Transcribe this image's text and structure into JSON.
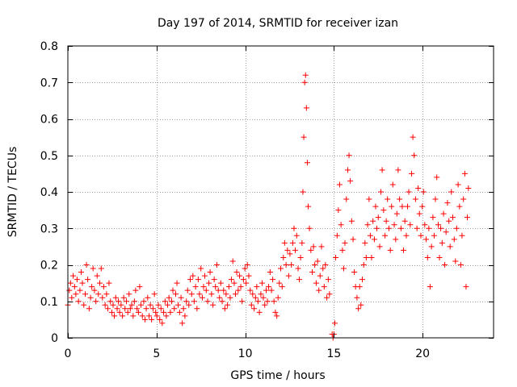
{
  "chart_data": {
    "type": "scatter",
    "title": "Day 197 of 2014, SRMTID for receiver izan",
    "xlabel": "GPS time / hours",
    "ylabel": "SRMTID / TECUs",
    "xlim": [
      0,
      24
    ],
    "ylim": [
      0,
      0.8
    ],
    "xticks": [
      0,
      5,
      10,
      15,
      20
    ],
    "xtick_labels": [
      "0",
      "5",
      "10",
      "15",
      "20"
    ],
    "yticks": [
      0,
      0.1,
      0.2,
      0.3,
      0.4,
      0.5,
      0.6,
      0.7,
      0.8
    ],
    "ytick_labels": [
      "0",
      "0.1",
      "0.2",
      "0.3",
      "0.4",
      "0.5",
      "0.6",
      "0.7",
      "0.8"
    ],
    "grid": true,
    "marker": "+",
    "colors": {
      "series": "#ff0000",
      "grid": "#a0a0a0",
      "axis": "#000000"
    },
    "series": [
      {
        "name": "SRMTID",
        "points": [
          [
            0.0,
            0.09
          ],
          [
            0.08,
            0.13
          ],
          [
            0.15,
            0.15
          ],
          [
            0.22,
            0.11
          ],
          [
            0.3,
            0.17
          ],
          [
            0.38,
            0.14
          ],
          [
            0.45,
            0.12
          ],
          [
            0.52,
            0.16
          ],
          [
            0.6,
            0.1
          ],
          [
            0.68,
            0.13
          ],
          [
            0.75,
            0.18
          ],
          [
            0.82,
            0.15
          ],
          [
            0.9,
            0.09
          ],
          [
            0.98,
            0.12
          ],
          [
            1.05,
            0.2
          ],
          [
            1.12,
            0.16
          ],
          [
            1.2,
            0.08
          ],
          [
            1.28,
            0.11
          ],
          [
            1.35,
            0.14
          ],
          [
            1.42,
            0.19
          ],
          [
            1.5,
            0.13
          ],
          [
            1.58,
            0.1
          ],
          [
            1.65,
            0.17
          ],
          [
            1.72,
            0.12
          ],
          [
            1.8,
            0.15
          ],
          [
            1.88,
            0.19
          ],
          [
            1.95,
            0.11
          ],
          [
            2.02,
            0.14
          ],
          [
            2.1,
            0.09
          ],
          [
            2.18,
            0.12
          ],
          [
            2.25,
            0.08
          ],
          [
            2.32,
            0.15
          ],
          [
            2.4,
            0.1
          ],
          [
            2.48,
            0.07
          ],
          [
            2.55,
            0.09
          ],
          [
            2.62,
            0.06
          ],
          [
            2.7,
            0.11
          ],
          [
            2.78,
            0.08
          ],
          [
            2.85,
            0.1
          ],
          [
            2.92,
            0.07
          ],
          [
            3.0,
            0.09
          ],
          [
            3.08,
            0.06
          ],
          [
            3.15,
            0.11
          ],
          [
            3.22,
            0.08
          ],
          [
            3.3,
            0.1
          ],
          [
            3.38,
            0.07
          ],
          [
            3.45,
            0.12
          ],
          [
            3.52,
            0.08
          ],
          [
            3.6,
            0.09
          ],
          [
            3.68,
            0.06
          ],
          [
            3.75,
            0.1
          ],
          [
            3.82,
            0.13
          ],
          [
            3.9,
            0.08
          ],
          [
            3.98,
            0.07
          ],
          [
            4.05,
            0.14
          ],
          [
            4.12,
            0.09
          ],
          [
            4.2,
            0.06
          ],
          [
            4.28,
            0.1
          ],
          [
            4.35,
            0.05
          ],
          [
            4.42,
            0.08
          ],
          [
            4.5,
            0.11
          ],
          [
            4.58,
            0.06
          ],
          [
            4.65,
            0.09
          ],
          [
            4.72,
            0.05
          ],
          [
            4.8,
            0.08
          ],
          [
            4.88,
            0.12
          ],
          [
            4.95,
            0.07
          ],
          [
            5.02,
            0.06
          ],
          [
            5.1,
            0.09
          ],
          [
            5.18,
            0.05
          ],
          [
            5.25,
            0.08
          ],
          [
            5.32,
            0.04
          ],
          [
            5.4,
            0.07
          ],
          [
            5.48,
            0.1
          ],
          [
            5.55,
            0.06
          ],
          [
            5.62,
            0.09
          ],
          [
            5.7,
            0.11
          ],
          [
            5.78,
            0.07
          ],
          [
            5.85,
            0.1
          ],
          [
            5.92,
            0.13
          ],
          [
            6.0,
            0.08
          ],
          [
            6.08,
            0.12
          ],
          [
            6.15,
            0.15
          ],
          [
            6.22,
            0.09
          ],
          [
            6.3,
            0.07
          ],
          [
            6.38,
            0.11
          ],
          [
            6.45,
            0.04
          ],
          [
            6.52,
            0.08
          ],
          [
            6.6,
            0.06
          ],
          [
            6.68,
            0.1
          ],
          [
            6.75,
            0.13
          ],
          [
            6.82,
            0.09
          ],
          [
            6.9,
            0.16
          ],
          [
            6.98,
            0.12
          ],
          [
            7.05,
            0.17
          ],
          [
            7.12,
            0.1
          ],
          [
            7.2,
            0.14
          ],
          [
            7.28,
            0.08
          ],
          [
            7.35,
            0.16
          ],
          [
            7.42,
            0.12
          ],
          [
            7.5,
            0.19
          ],
          [
            7.58,
            0.11
          ],
          [
            7.65,
            0.14
          ],
          [
            7.72,
            0.17
          ],
          [
            7.8,
            0.13
          ],
          [
            7.88,
            0.1
          ],
          [
            7.95,
            0.15
          ],
          [
            8.02,
            0.18
          ],
          [
            8.1,
            0.12
          ],
          [
            8.18,
            0.09
          ],
          [
            8.25,
            0.16
          ],
          [
            8.32,
            0.14
          ],
          [
            8.4,
            0.2
          ],
          [
            8.48,
            0.13
          ],
          [
            8.55,
            0.11
          ],
          [
            8.62,
            0.15
          ],
          [
            8.7,
            0.1
          ],
          [
            8.78,
            0.13
          ],
          [
            8.85,
            0.08
          ],
          [
            8.92,
            0.12
          ],
          [
            9.0,
            0.09
          ],
          [
            9.08,
            0.14
          ],
          [
            9.15,
            0.11
          ],
          [
            9.22,
            0.16
          ],
          [
            9.3,
            0.21
          ],
          [
            9.38,
            0.15
          ],
          [
            9.45,
            0.12
          ],
          [
            9.52,
            0.18
          ],
          [
            9.6,
            0.13
          ],
          [
            9.68,
            0.17
          ],
          [
            9.75,
            0.14
          ],
          [
            9.82,
            0.1
          ],
          [
            9.9,
            0.16
          ],
          [
            9.98,
            0.19
          ],
          [
            10.05,
            0.15
          ],
          [
            10.12,
            0.2
          ],
          [
            10.2,
            0.17
          ],
          [
            10.28,
            0.13
          ],
          [
            10.35,
            0.09
          ],
          [
            10.42,
            0.12
          ],
          [
            10.5,
            0.08
          ],
          [
            10.58,
            0.11
          ],
          [
            10.65,
            0.14
          ],
          [
            10.72,
            0.1
          ],
          [
            10.8,
            0.07
          ],
          [
            10.88,
            0.12
          ],
          [
            10.95,
            0.15
          ],
          [
            11.02,
            0.11
          ],
          [
            11.1,
            0.09
          ],
          [
            11.18,
            0.13
          ],
          [
            11.25,
            0.1
          ],
          [
            11.32,
            0.14
          ],
          [
            11.4,
            0.18
          ],
          [
            11.48,
            0.13
          ],
          [
            11.55,
            0.16
          ],
          [
            11.62,
            0.1
          ],
          [
            11.7,
            0.07
          ],
          [
            11.78,
            0.06
          ],
          [
            11.85,
            0.11
          ],
          [
            11.92,
            0.15
          ],
          [
            12.0,
            0.19
          ],
          [
            12.08,
            0.14
          ],
          [
            12.15,
            0.22
          ],
          [
            12.22,
            0.26
          ],
          [
            12.3,
            0.2
          ],
          [
            12.38,
            0.24
          ],
          [
            12.45,
            0.17
          ],
          [
            12.52,
            0.23
          ],
          [
            12.6,
            0.2
          ],
          [
            12.68,
            0.26
          ],
          [
            12.75,
            0.3
          ],
          [
            12.82,
            0.24
          ],
          [
            12.9,
            0.28
          ],
          [
            12.98,
            0.19
          ],
          [
            13.05,
            0.16
          ],
          [
            13.12,
            0.22
          ],
          [
            13.2,
            0.26
          ],
          [
            13.25,
            0.4
          ],
          [
            13.3,
            0.55
          ],
          [
            13.35,
            0.7
          ],
          [
            13.4,
            0.72
          ],
          [
            13.45,
            0.63
          ],
          [
            13.5,
            0.48
          ],
          [
            13.55,
            0.36
          ],
          [
            13.62,
            0.3
          ],
          [
            13.7,
            0.24
          ],
          [
            13.78,
            0.18
          ],
          [
            13.85,
            0.25
          ],
          [
            13.92,
            0.2
          ],
          [
            14.0,
            0.15
          ],
          [
            14.08,
            0.21
          ],
          [
            14.15,
            0.13
          ],
          [
            14.22,
            0.17
          ],
          [
            14.3,
            0.25
          ],
          [
            14.38,
            0.19
          ],
          [
            14.45,
            0.14
          ],
          [
            14.52,
            0.2
          ],
          [
            14.6,
            0.11
          ],
          [
            14.68,
            0.16
          ],
          [
            14.75,
            0.12
          ],
          [
            14.9,
            0.01
          ],
          [
            14.95,
            0.0
          ],
          [
            15.0,
            0.01
          ],
          [
            15.05,
            0.04
          ],
          [
            15.1,
            0.22
          ],
          [
            15.18,
            0.28
          ],
          [
            15.25,
            0.35
          ],
          [
            15.32,
            0.42
          ],
          [
            15.4,
            0.31
          ],
          [
            15.48,
            0.24
          ],
          [
            15.55,
            0.19
          ],
          [
            15.62,
            0.26
          ],
          [
            15.7,
            0.38
          ],
          [
            15.78,
            0.46
          ],
          [
            15.85,
            0.5
          ],
          [
            15.92,
            0.43
          ],
          [
            16.0,
            0.32
          ],
          [
            16.08,
            0.27
          ],
          [
            16.15,
            0.18
          ],
          [
            16.22,
            0.14
          ],
          [
            16.3,
            0.11
          ],
          [
            16.38,
            0.08
          ],
          [
            16.45,
            0.14
          ],
          [
            16.52,
            0.09
          ],
          [
            16.6,
            0.16
          ],
          [
            16.68,
            0.2
          ],
          [
            16.75,
            0.26
          ],
          [
            16.82,
            0.22
          ],
          [
            16.9,
            0.31
          ],
          [
            16.98,
            0.38
          ],
          [
            17.05,
            0.28
          ],
          [
            17.12,
            0.22
          ],
          [
            17.2,
            0.32
          ],
          [
            17.28,
            0.27
          ],
          [
            17.35,
            0.36
          ],
          [
            17.42,
            0.3
          ],
          [
            17.5,
            0.33
          ],
          [
            17.58,
            0.25
          ],
          [
            17.65,
            0.4
          ],
          [
            17.72,
            0.46
          ],
          [
            17.8,
            0.35
          ],
          [
            17.88,
            0.28
          ],
          [
            17.95,
            0.32
          ],
          [
            18.02,
            0.38
          ],
          [
            18.1,
            0.3
          ],
          [
            18.18,
            0.24
          ],
          [
            18.25,
            0.36
          ],
          [
            18.32,
            0.42
          ],
          [
            18.4,
            0.31
          ],
          [
            18.48,
            0.27
          ],
          [
            18.55,
            0.34
          ],
          [
            18.62,
            0.46
          ],
          [
            18.7,
            0.38
          ],
          [
            18.78,
            0.3
          ],
          [
            18.85,
            0.36
          ],
          [
            18.92,
            0.24
          ],
          [
            19.0,
            0.32
          ],
          [
            19.08,
            0.28
          ],
          [
            19.15,
            0.36
          ],
          [
            19.22,
            0.4
          ],
          [
            19.3,
            0.31
          ],
          [
            19.38,
            0.45
          ],
          [
            19.45,
            0.55
          ],
          [
            19.52,
            0.5
          ],
          [
            19.6,
            0.38
          ],
          [
            19.68,
            0.3
          ],
          [
            19.75,
            0.41
          ],
          [
            19.82,
            0.34
          ],
          [
            19.9,
            0.28
          ],
          [
            19.98,
            0.36
          ],
          [
            20.05,
            0.4
          ],
          [
            20.12,
            0.31
          ],
          [
            20.2,
            0.27
          ],
          [
            20.28,
            0.22
          ],
          [
            20.35,
            0.3
          ],
          [
            20.42,
            0.14
          ],
          [
            20.5,
            0.25
          ],
          [
            20.58,
            0.33
          ],
          [
            20.65,
            0.28
          ],
          [
            20.72,
            0.38
          ],
          [
            20.8,
            0.44
          ],
          [
            20.88,
            0.31
          ],
          [
            20.95,
            0.22
          ],
          [
            21.02,
            0.3
          ],
          [
            21.1,
            0.26
          ],
          [
            21.18,
            0.34
          ],
          [
            21.25,
            0.2
          ],
          [
            21.32,
            0.29
          ],
          [
            21.4,
            0.37
          ],
          [
            21.48,
            0.32
          ],
          [
            21.55,
            0.25
          ],
          [
            21.62,
            0.4
          ],
          [
            21.7,
            0.33
          ],
          [
            21.78,
            0.27
          ],
          [
            21.85,
            0.21
          ],
          [
            21.92,
            0.3
          ],
          [
            22.0,
            0.42
          ],
          [
            22.08,
            0.36
          ],
          [
            22.15,
            0.2
          ],
          [
            22.22,
            0.28
          ],
          [
            22.3,
            0.38
          ],
          [
            22.38,
            0.45
          ],
          [
            22.45,
            0.14
          ],
          [
            22.52,
            0.33
          ],
          [
            22.58,
            0.41
          ]
        ]
      }
    ]
  }
}
